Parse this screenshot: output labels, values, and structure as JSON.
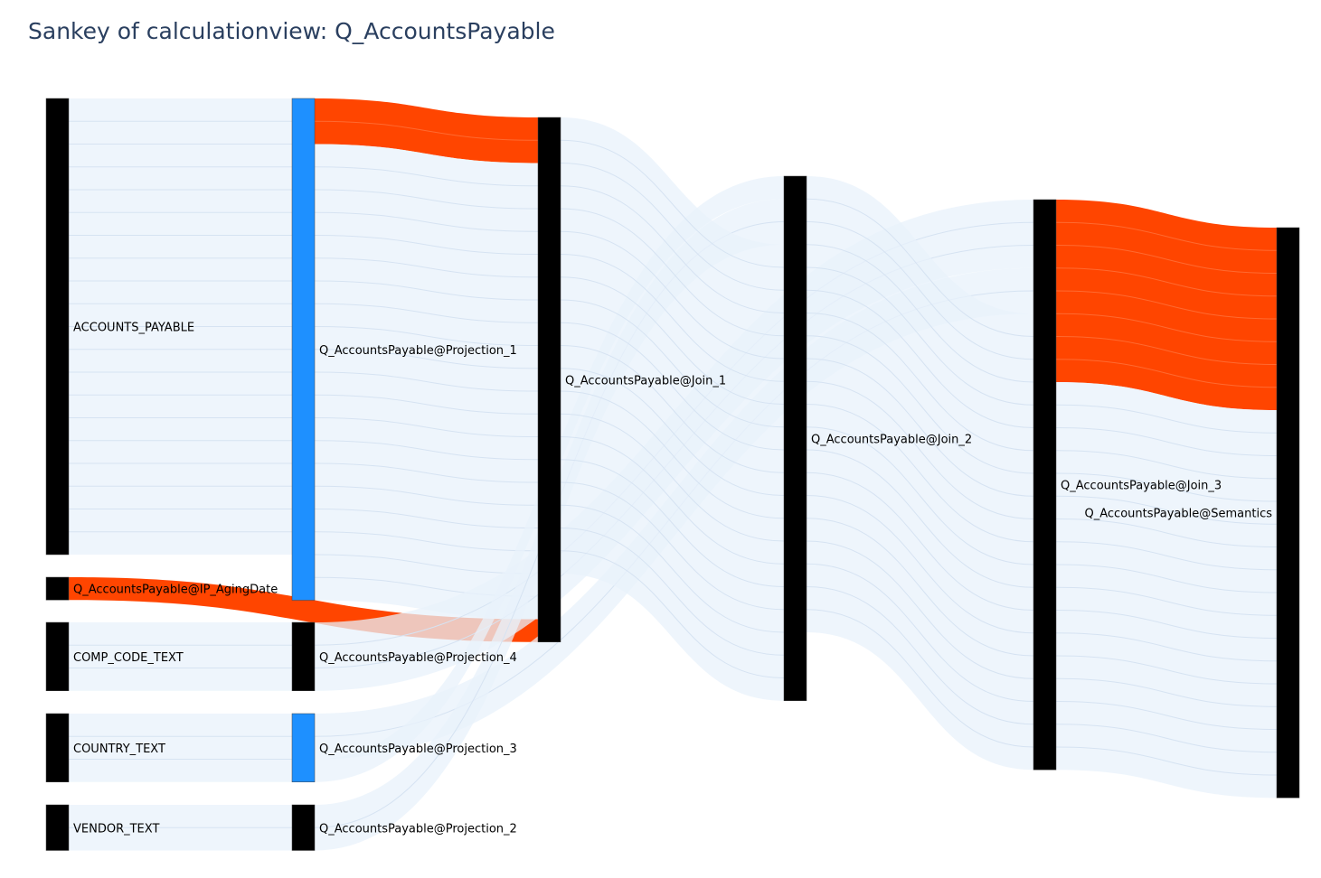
{
  "title": "Sankey of calculationview: Q_AccountsPayable",
  "colors": {
    "node_default": "#000000",
    "node_highlight": "#1e90ff",
    "link_default": "#e8f1fb",
    "link_highlight": "#ff4500",
    "link_divider": "#d6e3f2"
  },
  "chart_data": {
    "type": "sankey",
    "nodes": [
      {
        "id": "ACCOUNTS_PAYABLE",
        "label": "ACCOUNTS_PAYABLE",
        "highlight": false
      },
      {
        "id": "IP_AgingDate",
        "label": "Q_AccountsPayable@IP_AgingDate",
        "highlight": false
      },
      {
        "id": "COMP_CODE_TEXT",
        "label": "COMP_CODE_TEXT",
        "highlight": false
      },
      {
        "id": "COUNTRY_TEXT",
        "label": "COUNTRY_TEXT",
        "highlight": false
      },
      {
        "id": "VENDOR_TEXT",
        "label": "VENDOR_TEXT",
        "highlight": false
      },
      {
        "id": "Projection_1",
        "label": "Q_AccountsPayable@Projection_1",
        "highlight": true
      },
      {
        "id": "Projection_4",
        "label": "Q_AccountsPayable@Projection_4",
        "highlight": false
      },
      {
        "id": "Projection_3",
        "label": "Q_AccountsPayable@Projection_3",
        "highlight": true
      },
      {
        "id": "Projection_2",
        "label": "Q_AccountsPayable@Projection_2",
        "highlight": false
      },
      {
        "id": "Join_1",
        "label": "Q_AccountsPayable@Join_1",
        "highlight": false
      },
      {
        "id": "Join_2",
        "label": "Q_AccountsPayable@Join_2",
        "highlight": false
      },
      {
        "id": "Join_3",
        "label": "Q_AccountsPayable@Join_3",
        "highlight": false
      },
      {
        "id": "Semantics",
        "label": "Q_AccountsPayable@Semantics",
        "highlight": false
      }
    ],
    "links": [
      {
        "source": "ACCOUNTS_PAYABLE",
        "target": "Projection_1",
        "value": 20,
        "highlight": false
      },
      {
        "source": "COMP_CODE_TEXT",
        "target": "Projection_4",
        "value": 3,
        "highlight": false
      },
      {
        "source": "COUNTRY_TEXT",
        "target": "Projection_3",
        "value": 3,
        "highlight": false
      },
      {
        "source": "VENDOR_TEXT",
        "target": "Projection_2",
        "value": 2,
        "highlight": false
      },
      {
        "source": "Projection_1",
        "target": "Join_1",
        "value": 2,
        "highlight": true
      },
      {
        "source": "Projection_1",
        "target": "Join_1",
        "value": 20,
        "highlight": false
      },
      {
        "source": "IP_AgingDate",
        "target": "Join_1",
        "value": 1,
        "highlight": true
      },
      {
        "source": "Projection_4",
        "target": "Join_3",
        "value": 3,
        "highlight": false
      },
      {
        "source": "Projection_3",
        "target": "Join_3",
        "value": 2,
        "highlight": false
      },
      {
        "source": "Projection_3",
        "target": "Join_2",
        "value": 1,
        "highlight": false
      },
      {
        "source": "Projection_2",
        "target": "Join_2",
        "value": 2,
        "highlight": false
      },
      {
        "source": "Join_1",
        "target": "Join_2",
        "value": 20,
        "highlight": false
      },
      {
        "source": "Join_2",
        "target": "Join_3",
        "value": 20,
        "highlight": false
      },
      {
        "source": "Join_3",
        "target": "Semantics",
        "value": 8,
        "highlight": true
      },
      {
        "source": "Join_3",
        "target": "Semantics",
        "value": 17,
        "highlight": false
      }
    ]
  }
}
